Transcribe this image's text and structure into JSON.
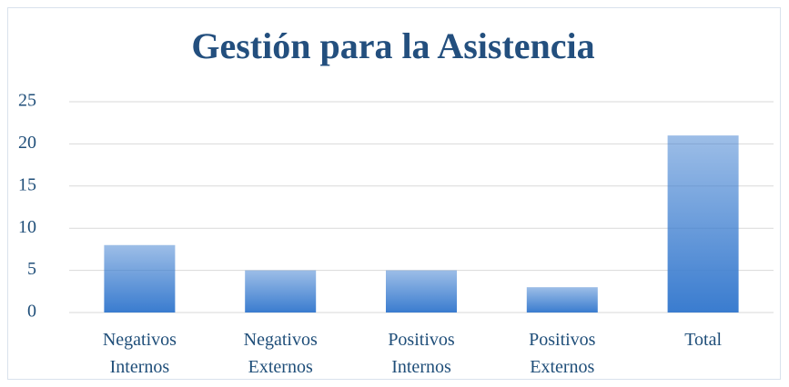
{
  "chart_data": {
    "type": "bar",
    "title": "Gestión para la Asistencia",
    "categories": [
      "Negativos Internos",
      "Negativos Externos",
      "Positivos Internos",
      "Positivos Externos",
      "Total"
    ],
    "values": [
      8,
      5,
      5,
      3,
      21
    ],
    "color": "#3a7ccf",
    "ylim": [
      0,
      25
    ],
    "yticks": [
      0,
      5,
      10,
      15,
      20,
      25
    ],
    "grid": true
  }
}
